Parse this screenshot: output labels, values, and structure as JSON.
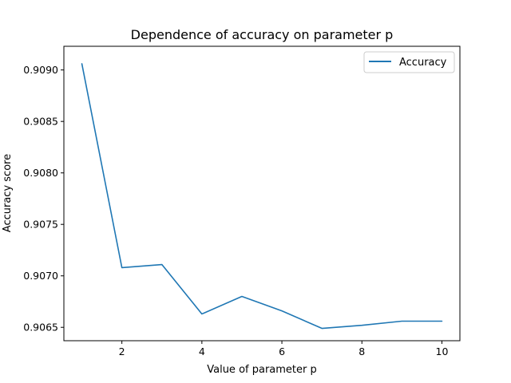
{
  "chart_data": {
    "type": "line",
    "title": "Dependence of accuracy on parameter p",
    "xlabel": "Value of parameter p",
    "ylabel": "Accuracy score",
    "xlim": [
      0.55,
      10.45
    ],
    "ylim": [
      0.90637,
      0.90923
    ],
    "xticks": [
      2,
      4,
      6,
      8,
      10
    ],
    "xtick_labels": [
      "2",
      "4",
      "6",
      "8",
      "10"
    ],
    "yticks": [
      0.9065,
      0.907,
      0.9075,
      0.908,
      0.9085,
      0.909
    ],
    "ytick_labels": [
      "0.9065",
      "0.9070",
      "0.9075",
      "0.9080",
      "0.9085",
      "0.9090"
    ],
    "grid": false,
    "legend_position": "top-right",
    "series": [
      {
        "name": "Accuracy",
        "color": "#1f77b4",
        "x": [
          1,
          2,
          3,
          4,
          5,
          6,
          7,
          8,
          9,
          10
        ],
        "y": [
          0.90906,
          0.90708,
          0.90711,
          0.90663,
          0.9068,
          0.90666,
          0.90649,
          0.90652,
          0.90656,
          0.90656
        ]
      }
    ]
  }
}
